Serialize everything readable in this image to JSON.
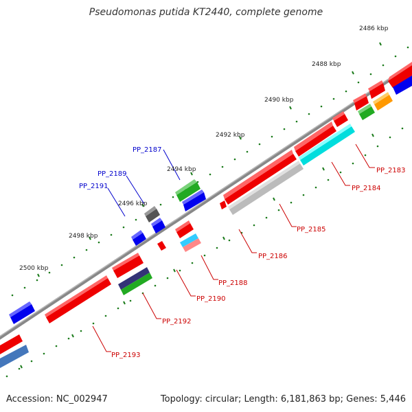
{
  "title": "Pseudomonas putida KT2440, complete genome",
  "footer": {
    "accession": "Accession: NC_002947",
    "summary": "Topology: circular; Length: 6,181,863 bp; Genes: 5,446"
  },
  "tick_labels": [
    "2486 kbp",
    "2488 kbp",
    "2490 kbp",
    "2492 kbp",
    "2494 kbp",
    "2496 kbp",
    "2498 kbp",
    "2500 kbp"
  ],
  "gene_labels_forward": [
    "PP_2187",
    "PP_2189",
    "PP_2191"
  ],
  "gene_labels_reverse": [
    "PP_2183",
    "PP_2184",
    "PP_2185",
    "PP_2186",
    "PP_2188",
    "PP_2190",
    "PP_2192",
    "PP_2193"
  ],
  "colors": {
    "backbone": "#888888",
    "ticks": "#1a7a1a",
    "forward_label": "#0000cc",
    "reverse_label": "#cc0000",
    "cds_red": "#ee0000",
    "cds_blue": "#0000ee",
    "cds_green": "#22aa22",
    "cds_cyan": "#00dddd",
    "cds_gray": "#bbbbbb",
    "cds_orange": "#ff9900"
  }
}
